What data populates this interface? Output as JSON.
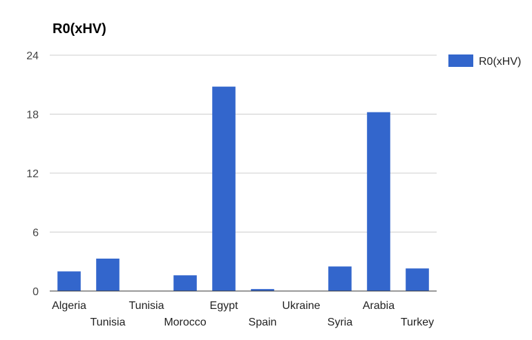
{
  "colors": {
    "bar": "#3366cc",
    "grid": "#cccccc",
    "baseline": "#333333",
    "background": "#ffffff"
  },
  "chart_data": {
    "type": "bar",
    "title": "R0(xHV)",
    "xlabel": "",
    "ylabel": "",
    "categories": [
      "Algeria",
      "Tunisia",
      "Tunisia",
      "Morocco",
      "Egypt",
      "Spain",
      "Ukraine",
      "Syria",
      "Arabia",
      "Turkey"
    ],
    "series": [
      {
        "name": "R0(xHV)",
        "values": [
          2.0,
          3.3,
          0,
          1.6,
          20.8,
          0.2,
          0,
          2.5,
          18.2,
          2.3
        ]
      }
    ],
    "ylim": [
      0,
      24
    ],
    "yticks": [
      0,
      6,
      12,
      18,
      24
    ],
    "grid": true,
    "legend_position": "right"
  }
}
